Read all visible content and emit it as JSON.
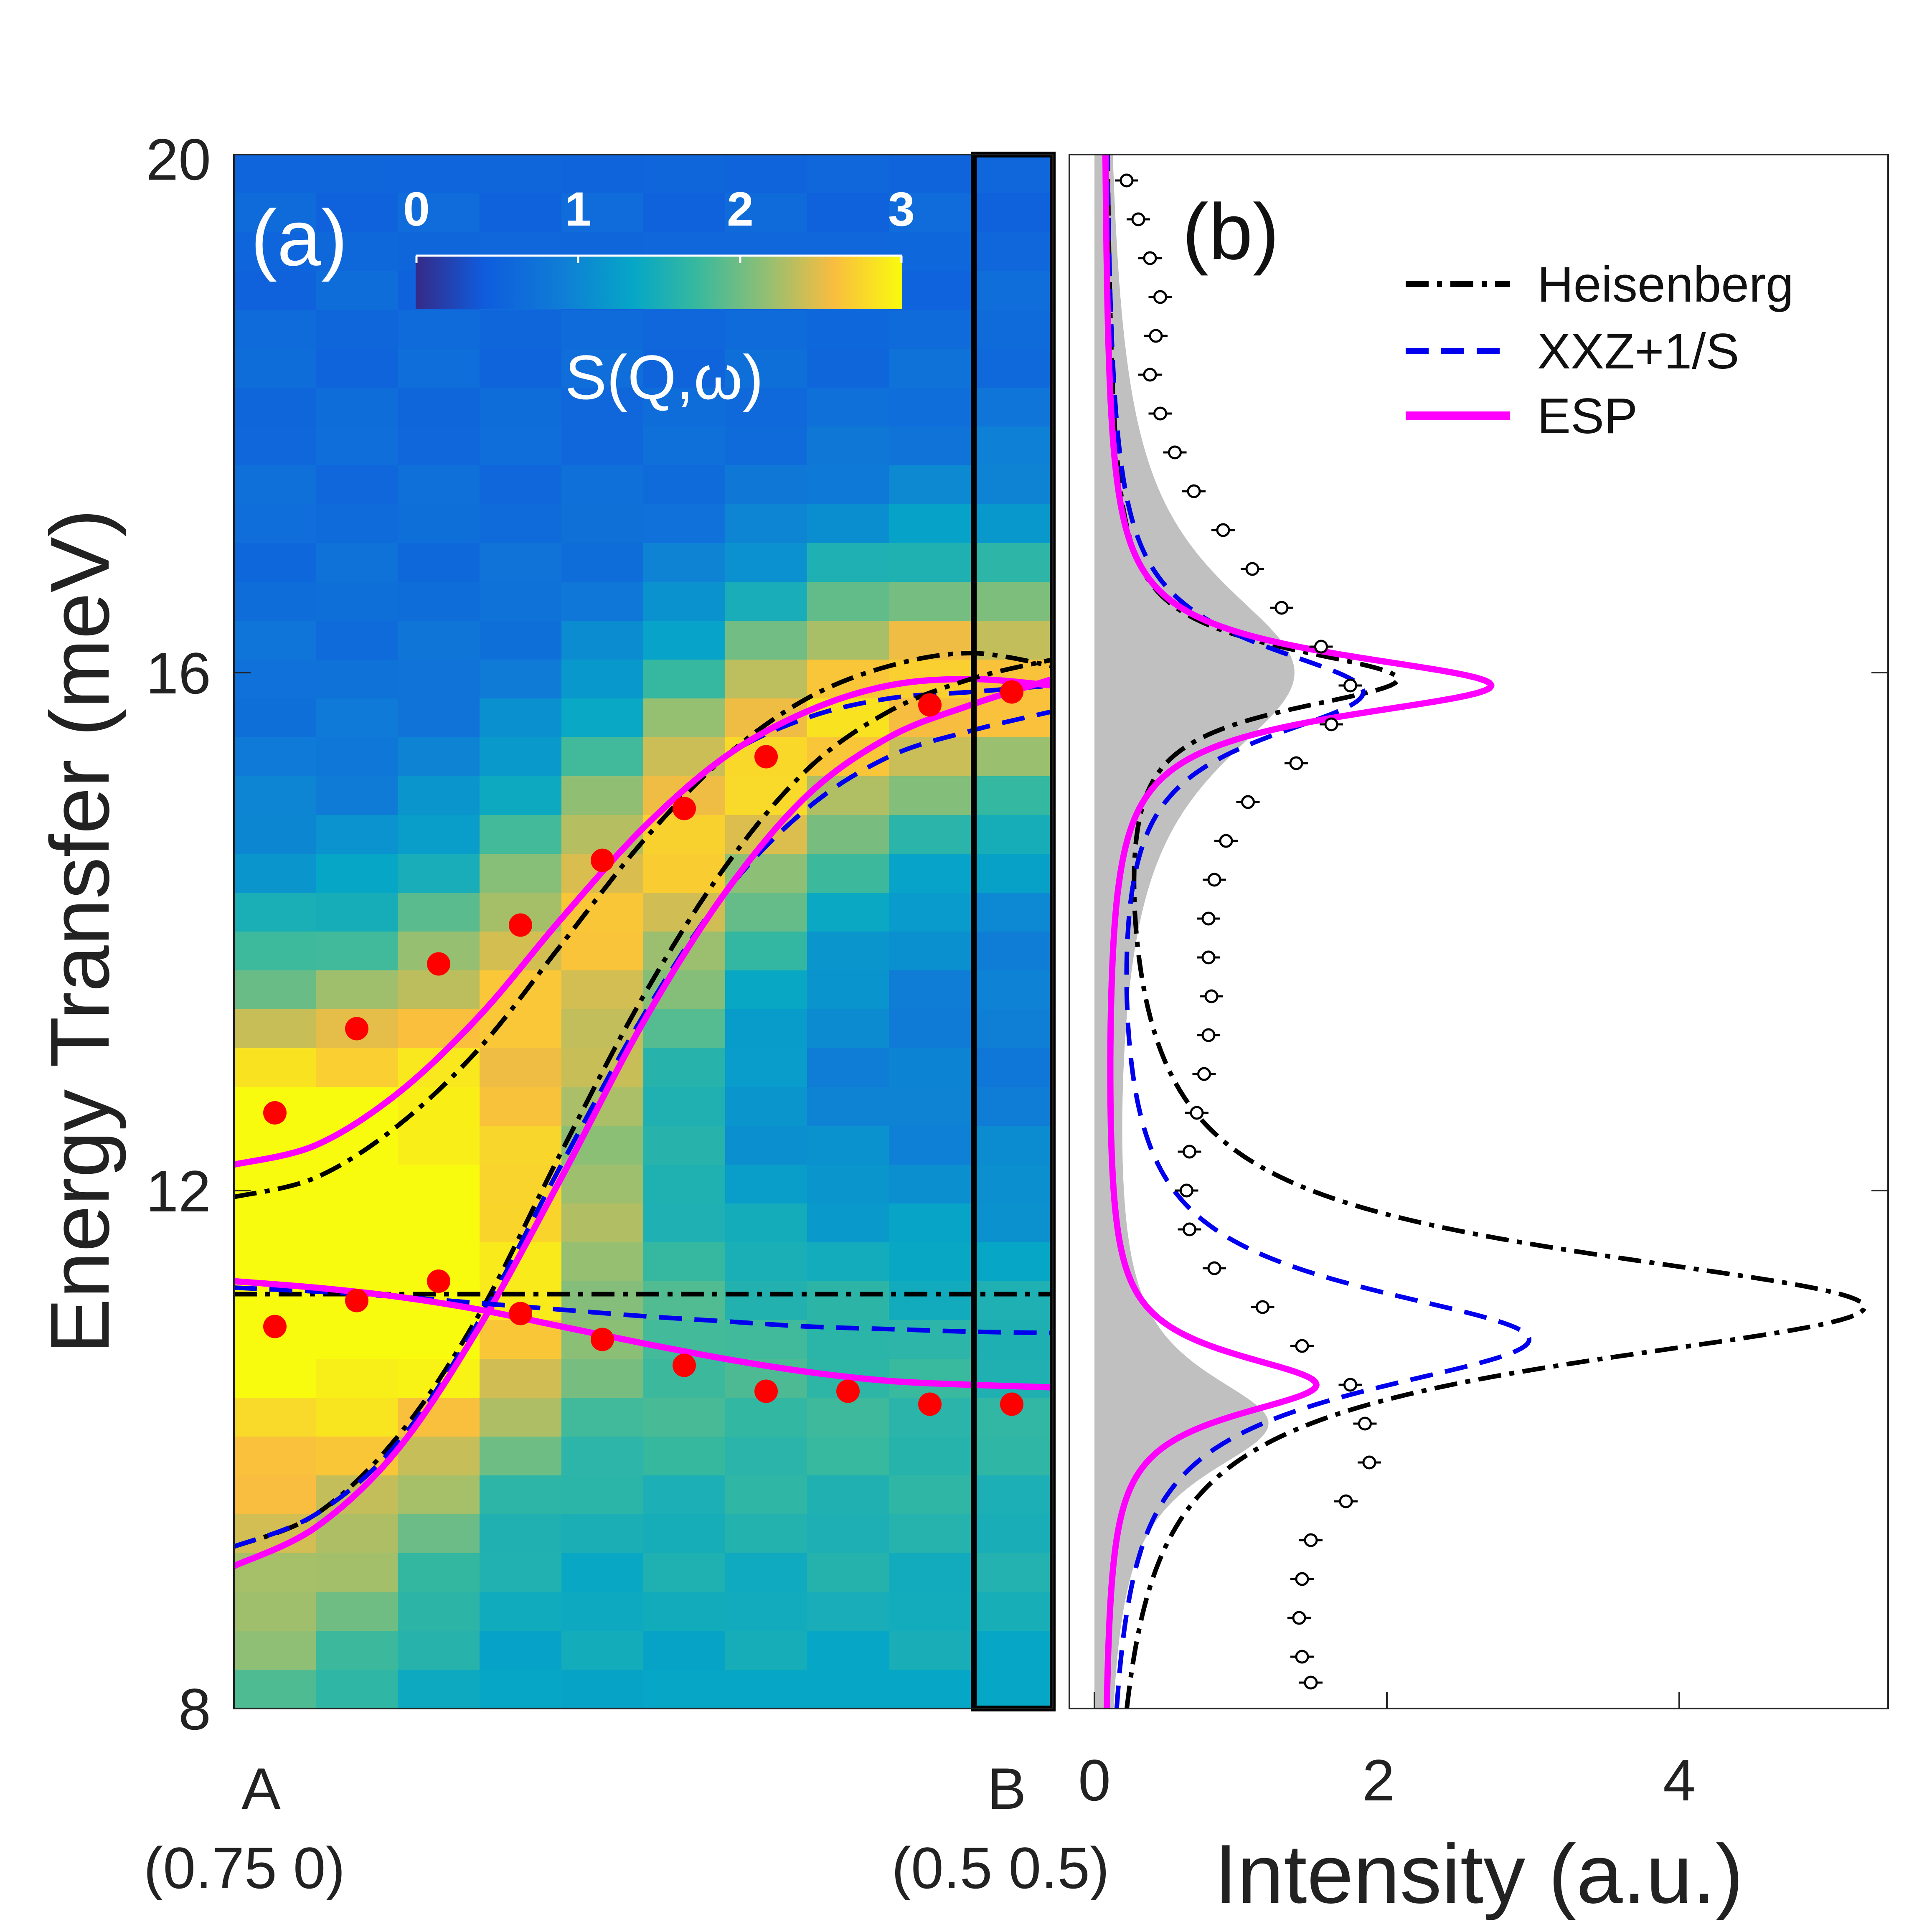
{
  "chart_data": [
    {
      "panel": "a",
      "type": "heatmap",
      "panel_label": "(a)",
      "ylabel": "Energy Transfer (meV)",
      "ylim": [
        8,
        20
      ],
      "y_ticks": [
        "20",
        "16",
        "12",
        "8"
      ],
      "x_ticks": [
        {
          "top": "A",
          "bottom": "(0.75 0)"
        },
        {
          "top": "B",
          "bottom": "(0.5 0.5)"
        }
      ],
      "colorbar": {
        "label": "S(Q,ω)",
        "ticks": [
          "0",
          "1",
          "2",
          "3"
        ],
        "range": [
          0,
          3
        ]
      },
      "heatmap_note": "S(Q,ω) intensity map along A→B, 10 Q columns × 40 energy rows",
      "columns_center_q": [
        0.05,
        0.15,
        0.25,
        0.35,
        0.45,
        0.55,
        0.65,
        0.75,
        0.85,
        0.95
      ],
      "highlighted_column_q": [
        0.9,
        1.0
      ],
      "series": [
        {
          "name": "Heisenberg upper",
          "style": "dash-dot",
          "color": "#000000",
          "x": [
            0,
            0.1,
            0.2,
            0.3,
            0.4,
            0.5,
            0.6,
            0.7,
            0.8,
            0.9,
            1.0
          ],
          "y": [
            11.95,
            12.1,
            12.5,
            13.1,
            13.9,
            14.7,
            15.35,
            15.8,
            16.05,
            16.15,
            16.05
          ]
        },
        {
          "name": "XXZ+1/S upper",
          "style": "dashed",
          "color": "#0000ee",
          "x": [
            0,
            0.1,
            0.2,
            0.3,
            0.4,
            0.5,
            0.6,
            0.7,
            0.8,
            0.9,
            1.0
          ],
          "y": [
            12.2,
            12.35,
            12.75,
            13.35,
            14.1,
            14.8,
            15.35,
            15.65,
            15.8,
            15.85,
            15.9
          ]
        },
        {
          "name": "ESP upper",
          "style": "solid",
          "color": "#ff00ff",
          "x": [
            0,
            0.1,
            0.2,
            0.3,
            0.4,
            0.5,
            0.6,
            0.7,
            0.8,
            0.9,
            1.0
          ],
          "y": [
            12.2,
            12.35,
            12.75,
            13.35,
            14.1,
            14.8,
            15.35,
            15.7,
            15.9,
            15.95,
            15.9
          ]
        },
        {
          "name": "Heisenberg lower",
          "style": "dash-dot",
          "color": "#000000",
          "x": [
            0,
            0.1,
            0.2,
            0.3,
            0.4,
            0.5,
            0.6,
            0.7,
            0.8,
            0.9,
            1.0
          ],
          "y": [
            9.25,
            9.5,
            10.1,
            11.05,
            12.3,
            13.5,
            14.5,
            15.25,
            15.7,
            15.95,
            16.1
          ]
        },
        {
          "name": "XXZ+1/S lower",
          "style": "dashed",
          "color": "#0000ee",
          "x": [
            0,
            0.1,
            0.2,
            0.3,
            0.4,
            0.5,
            0.6,
            0.7,
            0.8,
            0.9,
            1.0
          ],
          "y": [
            9.25,
            9.5,
            10.05,
            11.0,
            12.2,
            13.35,
            14.3,
            14.95,
            15.35,
            15.55,
            15.7
          ]
        },
        {
          "name": "ESP lower",
          "style": "solid",
          "color": "#ff00ff",
          "x": [
            0,
            0.1,
            0.2,
            0.3,
            0.4,
            0.5,
            0.6,
            0.7,
            0.8,
            0.9,
            1.0
          ],
          "y": [
            9.1,
            9.4,
            10.0,
            10.95,
            12.1,
            13.3,
            14.3,
            15.05,
            15.5,
            15.75,
            15.95
          ]
        },
        {
          "name": "Heisenberg flat",
          "style": "dash-dot",
          "color": "#000000",
          "x": [
            0,
            1.0
          ],
          "y": [
            11.2,
            11.2
          ]
        },
        {
          "name": "XXZ+1/S flat",
          "style": "dashed",
          "color": "#0000ee",
          "x": [
            0,
            0.1,
            0.2,
            0.3,
            0.4,
            0.5,
            0.6,
            0.7,
            0.8,
            0.9,
            1.0
          ],
          "y": [
            11.25,
            11.22,
            11.18,
            11.13,
            11.08,
            11.03,
            10.99,
            10.95,
            10.93,
            10.91,
            10.9
          ]
        },
        {
          "name": "ESP flat",
          "style": "solid",
          "color": "#ff00ff",
          "x": [
            0,
            0.1,
            0.2,
            0.3,
            0.4,
            0.5,
            0.6,
            0.7,
            0.8,
            0.9,
            1.0
          ],
          "y": [
            11.3,
            11.25,
            11.18,
            11.08,
            10.95,
            10.82,
            10.7,
            10.6,
            10.53,
            10.5,
            10.48
          ]
        }
      ],
      "peaks_upper": {
        "color": "#ff0000",
        "x": [
          0.05,
          0.15,
          0.25,
          0.35,
          0.45,
          0.55,
          0.65,
          0.85,
          0.95
        ],
        "y": [
          12.6,
          13.25,
          13.75,
          14.05,
          14.55,
          14.95,
          15.35,
          15.75,
          15.85
        ]
      },
      "peaks_lower": {
        "color": "#ff0000",
        "x": [
          0.05,
          0.15,
          0.25,
          0.35,
          0.45,
          0.55,
          0.65,
          0.75,
          0.85,
          0.95
        ],
        "y": [
          10.95,
          11.15,
          11.3,
          11.05,
          10.85,
          10.65,
          10.45,
          10.45,
          10.35,
          10.35
        ]
      }
    },
    {
      "panel": "b",
      "type": "line",
      "panel_label": "(b)",
      "xlabel": "Intensity (a.u.)",
      "xlim": [
        0,
        5.3
      ],
      "ylim": [
        8,
        20
      ],
      "x_ticks": [
        "0",
        "2",
        "4"
      ],
      "legend": [
        {
          "label": "Heisenberg",
          "style": "dash-dot",
          "color": "#000000"
        },
        {
          "label": "XXZ+1/S",
          "style": "dashed",
          "color": "#0000ee"
        },
        {
          "label": "ESP",
          "style": "solid",
          "color": "#ff00ff"
        }
      ],
      "legend_position": "top-right",
      "resolution_fill_color": "#c0c0c0",
      "series": [
        {
          "name": "Heisenberg",
          "style": "dash-dot",
          "color": "#000000",
          "baseline": 0.06,
          "peaks": [
            {
              "e": 15.95,
              "a": 1.95,
              "w": 0.3
            },
            {
              "e": 11.1,
              "a": 5.2,
              "w": 0.55
            }
          ]
        },
        {
          "name": "XXZ+1/S",
          "style": "dashed",
          "color": "#0000ee",
          "baseline": 0.06,
          "peaks": [
            {
              "e": 15.85,
              "a": 1.75,
              "w": 0.45
            },
            {
              "e": 10.85,
              "a": 2.9,
              "w": 0.5
            }
          ]
        },
        {
          "name": "ESP",
          "style": "solid",
          "color": "#ff00ff",
          "baseline": 0.06,
          "peaks": [
            {
              "e": 15.9,
              "a": 2.65,
              "w": 0.3
            },
            {
              "e": 10.5,
              "a": 1.45,
              "w": 0.3
            }
          ]
        },
        {
          "name": "resolution",
          "style": "filled",
          "color": "#c0c0c0",
          "baseline": 0.06,
          "peaks": [
            {
              "e": 16.0,
              "a": 1.3,
              "w": 0.9
            },
            {
              "e": 10.2,
              "a": 1.1,
              "w": 0.5
            }
          ]
        }
      ],
      "data_points": {
        "name": "measured (open circles)",
        "e": [
          19.8,
          19.5,
          19.2,
          18.9,
          18.6,
          18.3,
          18.0,
          17.7,
          17.4,
          17.1,
          16.8,
          16.5,
          16.2,
          15.9,
          15.6,
          15.3,
          15.0,
          14.7,
          14.4,
          14.1,
          13.8,
          13.5,
          13.2,
          12.9,
          12.6,
          12.3,
          12.0,
          11.7,
          11.4,
          11.1,
          10.8,
          10.5,
          10.2,
          9.9,
          9.6,
          9.3,
          9.0,
          8.7,
          8.4,
          8.2
        ],
        "intensity": [
          0.22,
          0.3,
          0.38,
          0.45,
          0.42,
          0.38,
          0.45,
          0.55,
          0.68,
          0.88,
          1.08,
          1.28,
          1.55,
          1.75,
          1.62,
          1.38,
          1.05,
          0.9,
          0.82,
          0.78,
          0.78,
          0.8,
          0.78,
          0.75,
          0.7,
          0.65,
          0.63,
          0.65,
          0.82,
          1.15,
          1.42,
          1.75,
          1.85,
          1.88,
          1.72,
          1.48,
          1.42,
          1.4,
          1.42,
          1.48
        ]
      }
    }
  ]
}
